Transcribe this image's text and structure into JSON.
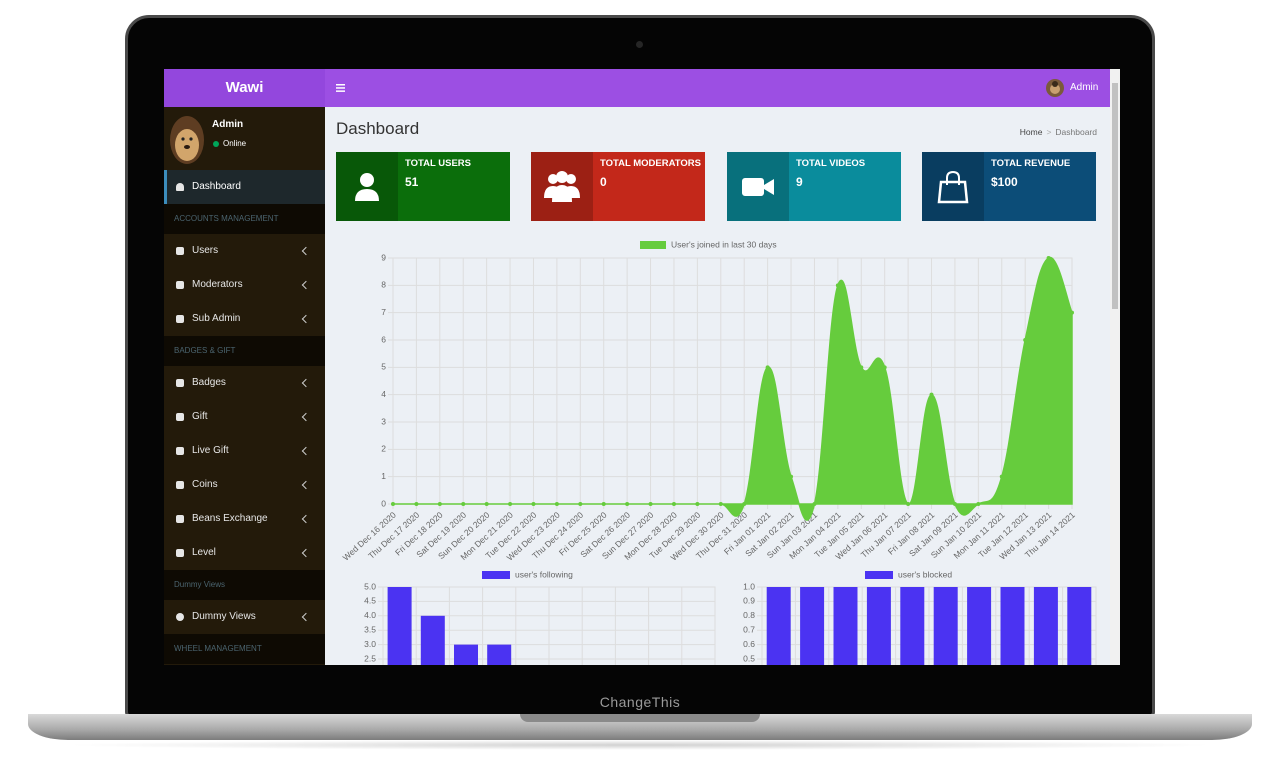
{
  "header": {
    "brand": "Wawi",
    "user": "Admin"
  },
  "sidebar": {
    "user": {
      "name": "Admin",
      "status": "Online"
    },
    "active": "Dashboard",
    "sections": [
      {
        "heading": "ACCOUNTS MANAGEMENT",
        "items": [
          "Users",
          "Moderators",
          "Sub Admin"
        ]
      },
      {
        "heading": "BADGES & GIFT",
        "items": [
          "Badges",
          "Gift",
          "Live Gift",
          "Coins",
          "Beans Exchange",
          "Level"
        ]
      },
      {
        "heading": "Dummy Views",
        "items": [
          "Dummy Views"
        ]
      },
      {
        "heading": "WHEEL MANAGEMENT",
        "items": []
      }
    ]
  },
  "content": {
    "title": "Dashboard",
    "breadcrumb": [
      "Home",
      "Dashboard"
    ],
    "stats": [
      {
        "label": "TOTAL USERS",
        "value": "51"
      },
      {
        "label": "TOTAL MODERATORS",
        "value": "0"
      },
      {
        "label": "TOTAL VIDEOS",
        "value": "9"
      },
      {
        "label": "TOTAL REVENUE",
        "value": "$100"
      }
    ]
  },
  "chart_data": [
    {
      "type": "area",
      "categories": [
        "Wed Dec 16 2020",
        "Thu Dec 17 2020",
        "Fri Dec 18 2020",
        "Sat Dec 19 2020",
        "Sun Dec 20 2020",
        "Mon Dec 21 2020",
        "Tue Dec 22 2020",
        "Wed Dec 23 2020",
        "Thu Dec 24 2020",
        "Fri Dec 25 2020",
        "Sat Dec 26 2020",
        "Sun Dec 27 2020",
        "Mon Dec 28 2020",
        "Tue Dec 29 2020",
        "Wed Dec 30 2020",
        "Thu Dec 31 2020",
        "Fri Jan 01 2021",
        "Sat Jan 02 2021",
        "Sun Jan 03 2021",
        "Mon Jan 04 2021",
        "Tue Jan 05 2021",
        "Wed Jan 06 2021",
        "Thu Jan 07 2021",
        "Fri Jan 08 2021",
        "Sat Jan 09 2021",
        "Sun Jan 10 2021",
        "Mon Jan 11 2021",
        "Tue Jan 12 2021",
        "Wed Jan 13 2021",
        "Thu Jan 14 2021"
      ],
      "series": [
        {
          "name": "User's joined in last 30 days",
          "color": "#66cc3d",
          "values": [
            0,
            0,
            0,
            0,
            0,
            0,
            0,
            0,
            0,
            0,
            0,
            0,
            0,
            0,
            0,
            0,
            5,
            1,
            0,
            8,
            5,
            5,
            0,
            4,
            0,
            0,
            1,
            6,
            9,
            7
          ]
        }
      ],
      "ylim": [
        0,
        9
      ],
      "yticks": [
        0,
        1,
        2,
        3,
        4,
        5,
        6,
        7,
        8,
        9
      ],
      "grid": true
    },
    {
      "type": "bar",
      "series": [
        {
          "name": "user's following",
          "color": "#4b33f2",
          "values": [
            5,
            4,
            3,
            3
          ]
        }
      ],
      "ylim": [
        0,
        5
      ],
      "yticks": [
        {
          "value": 5,
          "label": "5.0"
        },
        4.5,
        {
          "value": 4,
          "label": "4.0"
        },
        3.5,
        {
          "value": 3,
          "label": "3.0"
        },
        2.5
      ],
      "grid": true
    },
    {
      "type": "bar",
      "series": [
        {
          "name": "user's blocked",
          "color": "#4b33f2",
          "values": [
            1,
            1,
            1,
            1,
            1,
            1,
            1,
            1,
            1,
            1
          ]
        }
      ],
      "ylim": [
        0,
        1
      ],
      "yticks": [
        {
          "value": 1,
          "label": "1.0"
        },
        0.9,
        0.8,
        0.7,
        0.6,
        0.5
      ],
      "grid": true
    }
  ],
  "device": {
    "label": "ChangeThis"
  }
}
